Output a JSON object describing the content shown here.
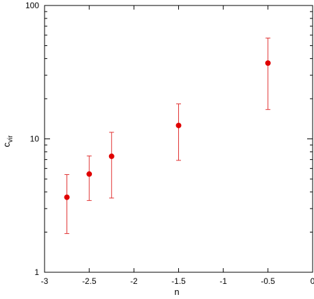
{
  "chart_data": {
    "type": "scatter",
    "xlabel": "n",
    "ylabel": "c",
    "ylabel_subscript": "vir",
    "xlim": [
      -3,
      0
    ],
    "ylim": [
      1,
      100
    ],
    "yscale": "log",
    "grid": false,
    "legend": "none",
    "x_ticks": [
      -3,
      -2.5,
      -2,
      -1.5,
      -1,
      -0.5,
      0
    ],
    "x_tick_labels": [
      "-3",
      "-2.5",
      "-2",
      "-1.5",
      "-1",
      "-0.5",
      "0"
    ],
    "y_ticks": [
      1,
      10,
      100
    ],
    "y_tick_labels": [
      "1",
      "10",
      "100"
    ],
    "marker_color": "#e00000",
    "errorbar_color": "#e03030",
    "points": [
      {
        "x": -2.75,
        "y": 3.65,
        "ylow": 1.95,
        "yhigh": 5.4
      },
      {
        "x": -2.5,
        "y": 5.45,
        "ylow": 3.45,
        "yhigh": 7.45
      },
      {
        "x": -2.25,
        "y": 7.4,
        "ylow": 3.6,
        "yhigh": 11.2
      },
      {
        "x": -1.5,
        "y": 12.6,
        "ylow": 6.9,
        "yhigh": 18.3
      },
      {
        "x": -0.5,
        "y": 37.0,
        "ylow": 16.6,
        "yhigh": 57.0
      }
    ]
  }
}
